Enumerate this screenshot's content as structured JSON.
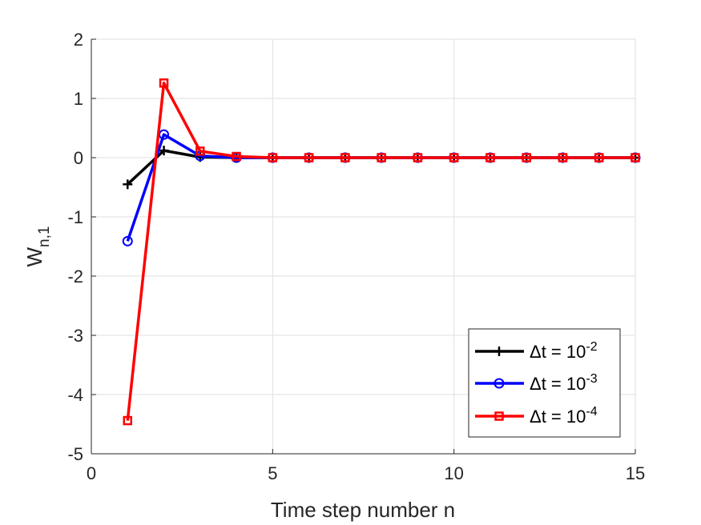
{
  "chart_data": {
    "type": "line",
    "title": "",
    "xlabel": "Time step number n",
    "ylabel": {
      "main": "W",
      "sub": "n,1"
    },
    "xlim": [
      0,
      15
    ],
    "ylim": [
      -5,
      2
    ],
    "xticks": [
      0,
      5,
      10,
      15
    ],
    "xtick_labels": [
      "0",
      "5",
      "10",
      "15"
    ],
    "yticks": [
      2,
      1,
      0,
      -1,
      -2,
      -3,
      -4,
      -5
    ],
    "ytick_labels": [
      "2",
      "1",
      "0",
      "-1",
      "-2",
      "-3",
      "-4",
      "-5"
    ],
    "grid": true,
    "legend_position": "bottom-right",
    "x": [
      1,
      2,
      3,
      4,
      5,
      6,
      7,
      8,
      9,
      10,
      11,
      12,
      13,
      14,
      15
    ],
    "series": [
      {
        "legend": {
          "base": "Δt = 10",
          "exp": "-2"
        },
        "color": "#000000",
        "marker": "plus",
        "values": [
          -0.45,
          0.12,
          0.01,
          0,
          0,
          0,
          0,
          0,
          0,
          0,
          0,
          0,
          0,
          0,
          0
        ]
      },
      {
        "legend": {
          "base": "Δt = 10",
          "exp": "-3"
        },
        "color": "#0000ff",
        "marker": "circle",
        "values": [
          -1.41,
          0.39,
          0.03,
          0,
          0,
          0,
          0,
          0,
          0,
          0,
          0,
          0,
          0,
          0,
          0
        ]
      },
      {
        "legend": {
          "base": "Δt = 10",
          "exp": "-4"
        },
        "color": "#ff0000",
        "marker": "square",
        "values": [
          -4.44,
          1.26,
          0.11,
          0.02,
          0,
          0,
          0,
          0,
          0,
          0,
          0,
          0,
          0,
          0,
          0
        ]
      }
    ]
  }
}
